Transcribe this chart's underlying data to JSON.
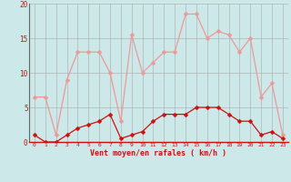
{
  "x": [
    0,
    1,
    2,
    3,
    4,
    5,
    6,
    7,
    8,
    9,
    10,
    11,
    12,
    13,
    14,
    15,
    16,
    17,
    18,
    19,
    20,
    21,
    22,
    23
  ],
  "wind_avg": [
    1,
    0,
    0,
    1,
    2,
    2.5,
    3,
    4,
    0.5,
    1,
    1.5,
    3,
    4,
    4,
    4,
    5,
    5,
    5,
    4,
    3,
    3,
    1,
    1.5,
    0.5
  ],
  "wind_gust": [
    6.5,
    6.5,
    1,
    9,
    13,
    13,
    13,
    10,
    3,
    15.5,
    10,
    11.5,
    13,
    13,
    18.5,
    18.5,
    15,
    16,
    15.5,
    13,
    15,
    6.5,
    8.5,
    1
  ],
  "xlabel": "Vent moyen/en rafales ( km/h )",
  "ylim": [
    0,
    20
  ],
  "yticks": [
    0,
    5,
    10,
    15,
    20
  ],
  "xticks": [
    0,
    1,
    2,
    3,
    4,
    5,
    6,
    7,
    8,
    9,
    10,
    11,
    12,
    13,
    14,
    15,
    16,
    17,
    18,
    19,
    20,
    21,
    22,
    23
  ],
  "bg_color": "#cce8e8",
  "grid_color": "#aaaaaa",
  "line_avg_color": "#cc1111",
  "line_gust_color": "#ee9999",
  "marker_size": 2.5,
  "line_width": 0.9
}
